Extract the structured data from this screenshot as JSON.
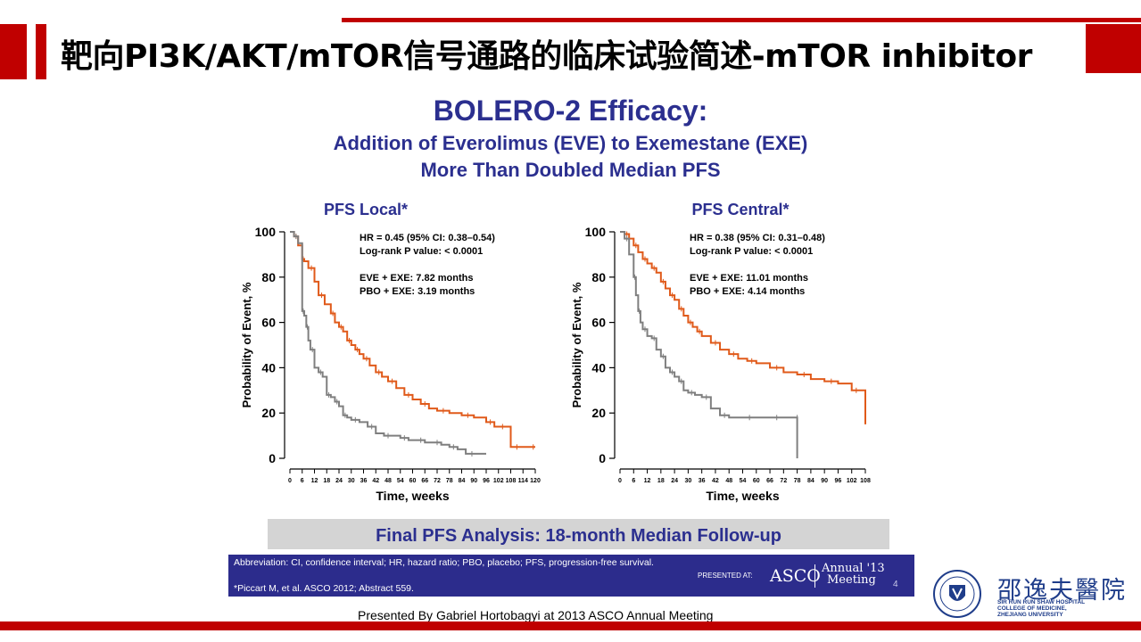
{
  "header": {
    "title": "靶向PI3K/AKT/mTOR信号通路的临床试验简述-mTOR inhibitor"
  },
  "slide": {
    "title": "BOLERO-2 Efficacy:",
    "subtitle_line1": "Addition of Everolimus (EVE) to Exemestane (EXE)",
    "subtitle_line2": "More Than Doubled Median PFS"
  },
  "chart_data": [
    {
      "type": "line",
      "title": "PFS Local*",
      "xlabel": "Time, weeks",
      "ylabel": "Probability of Event, %",
      "xlim": [
        0,
        120
      ],
      "ylim": [
        0,
        100
      ],
      "yticks": [
        "0",
        "20",
        "40",
        "60",
        "80",
        "100"
      ],
      "xticks": [
        "0",
        "6",
        "12",
        "18",
        "24",
        "30",
        "36",
        "42",
        "48",
        "54",
        "60",
        "66",
        "72",
        "78",
        "84",
        "90",
        "96",
        "102",
        "108",
        "114",
        "120"
      ],
      "annotations": [
        "HR = 0.45 (95% CI: 0.38–0.54)",
        "Log-rank P value: < 0.0001",
        "EVE + EXE: 7.82 months",
        "PBO + EXE: 3.19 months"
      ],
      "series": [
        {
          "color": "#e05a1a",
          "x": [
            0,
            2,
            4,
            6,
            7,
            9,
            12,
            14,
            17,
            20,
            22,
            24,
            26,
            28,
            30,
            32,
            34,
            36,
            39,
            42,
            45,
            48,
            52,
            56,
            60,
            64,
            68,
            72,
            78,
            84,
            90,
            96,
            100,
            102,
            106,
            108,
            114,
            118,
            120
          ],
          "y": [
            100,
            98,
            94,
            88,
            87,
            84,
            78,
            72,
            68,
            64,
            60,
            58,
            56,
            52,
            50,
            48,
            46,
            44,
            41,
            38,
            36,
            34,
            31,
            28,
            26,
            24,
            22,
            21,
            20,
            19,
            18,
            16,
            14,
            14,
            14,
            5,
            5,
            5,
            5
          ]
        },
        {
          "color": "#7f7f7f",
          "x": [
            0,
            2,
            4,
            6,
            7,
            8,
            9,
            10,
            12,
            14,
            16,
            18,
            20,
            22,
            24,
            26,
            28,
            30,
            34,
            38,
            42,
            46,
            50,
            54,
            58,
            62,
            66,
            70,
            74,
            78,
            82,
            86,
            92,
            96
          ],
          "y": [
            100,
            98,
            95,
            65,
            63,
            58,
            52,
            48,
            40,
            38,
            36,
            28,
            27,
            25,
            23,
            19,
            18,
            17,
            16,
            14,
            11,
            10,
            10,
            9,
            8,
            8,
            7,
            7,
            6,
            5,
            4,
            2,
            2,
            2
          ]
        }
      ]
    },
    {
      "type": "line",
      "title": "PFS Central*",
      "xlabel": "Time, weeks",
      "ylabel": "Probability of Event, %",
      "xlim": [
        0,
        108
      ],
      "ylim": [
        0,
        100
      ],
      "yticks": [
        "0",
        "20",
        "40",
        "60",
        "80",
        "100"
      ],
      "xticks": [
        "0",
        "6",
        "12",
        "18",
        "24",
        "30",
        "36",
        "42",
        "48",
        "54",
        "60",
        "66",
        "72",
        "78",
        "84",
        "90",
        "96",
        "102",
        "108"
      ],
      "annotations": [
        "HR = 0.38 (95% CI: 0.31–0.48)",
        "Log-rank P value: < 0.0001",
        "EVE + EXE: 11.01 months",
        "PBO + EXE: 4.14 months"
      ],
      "series": [
        {
          "color": "#e05a1a",
          "x": [
            0,
            2,
            4,
            6,
            8,
            10,
            12,
            14,
            16,
            18,
            20,
            22,
            24,
            26,
            28,
            30,
            32,
            34,
            36,
            40,
            44,
            48,
            52,
            56,
            60,
            66,
            72,
            78,
            84,
            90,
            96,
            102,
            106,
            108
          ],
          "y": [
            100,
            99,
            97,
            94,
            91,
            88,
            86,
            84,
            82,
            78,
            75,
            72,
            70,
            66,
            63,
            60,
            58,
            56,
            54,
            51,
            48,
            46,
            44,
            43,
            42,
            40,
            38,
            37,
            35,
            34,
            33,
            30,
            30,
            15
          ]
        },
        {
          "color": "#7f7f7f",
          "x": [
            0,
            2,
            4,
            6,
            7,
            8,
            9,
            10,
            12,
            14,
            16,
            18,
            20,
            22,
            24,
            26,
            28,
            30,
            33,
            36,
            40,
            44,
            48,
            54,
            60,
            66,
            72,
            78,
            78
          ],
          "y": [
            100,
            97,
            90,
            80,
            72,
            65,
            60,
            57,
            54,
            53,
            48,
            45,
            40,
            38,
            36,
            34,
            30,
            29,
            28,
            27,
            22,
            19,
            18,
            18,
            18,
            18,
            18,
            18,
            0
          ]
        }
      ]
    }
  ],
  "summary_bar": "Final PFS Analysis: 18-month Median Follow-up",
  "footer": {
    "abbrev": "Abbreviation: CI, confidence  interval; HR, hazard ratio; PBO, placebo; PFS, progression-free survival.",
    "ref": "*Piccart M, et al. ASCO 2012; Abstract 559.",
    "presented_at": "PRESENTED AT:",
    "asco": "ASCO",
    "meeting_line1": "Annual '13",
    "meeting_line2": "Meeting",
    "page_num": "4"
  },
  "presenter_note": "Presented By Gabriel Hortobagyi at 2013 ASCO Annual Meeting",
  "hospital": {
    "name_cn": "邵逸夫醫院",
    "name_en_1": "SIR RUN RUN SHAW HOSPITAL",
    "name_en_2": "COLLEGE OF MEDICINE,",
    "name_en_3": "ZHEJIANG UNIVERSITY",
    "seal_text": "ZUM · 浙江大學 · 1897"
  },
  "colors": {
    "accent_red": "#c00000",
    "title_blue": "#2b2f8f",
    "eve_orange": "#e05a1a",
    "pbo_gray": "#7f7f7f",
    "footer_navy": "#2c2c8c"
  }
}
